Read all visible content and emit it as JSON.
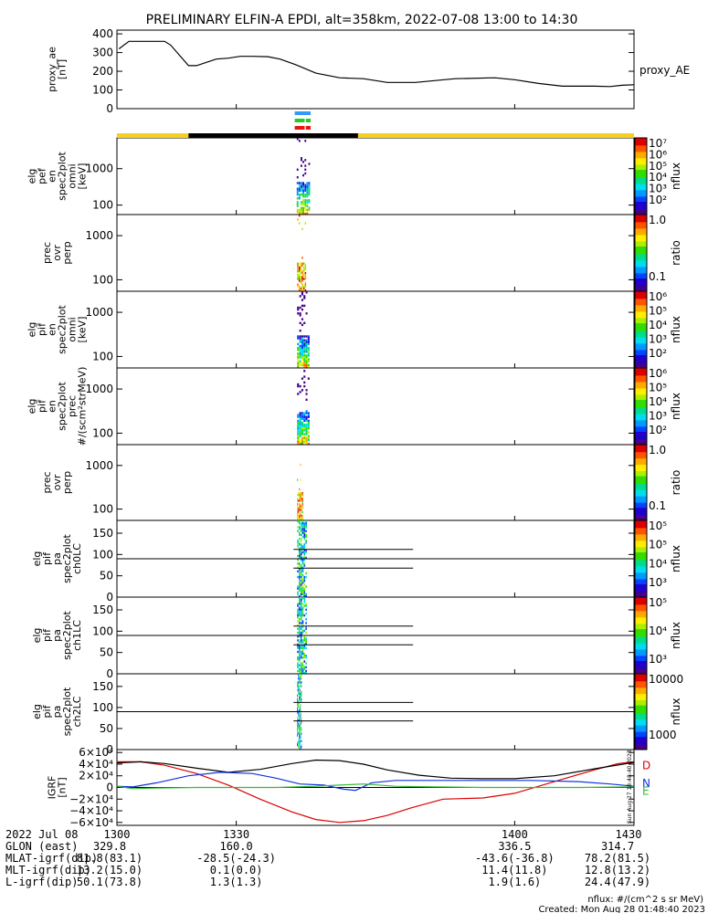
{
  "title": "PRELIMINARY ELFIN-A EPDI, alt=358km, 2022-07-08 13:00 to 14:30",
  "colors": {
    "sun_bar": "#f5d020",
    "shadow_bar": "#000000",
    "marker_blue": "#3399ff",
    "marker_green": "#22cc22",
    "marker_red": "#ee1111"
  },
  "chart_data": [
    {
      "id": "proxy_ae",
      "type": "line",
      "ylabel_lines": [
        "proxy_ae",
        "[nT]"
      ],
      "legend": "proxy_AE",
      "ylim": [
        0,
        420
      ],
      "yticks": [
        "400",
        "300",
        "200",
        "100",
        "0"
      ],
      "ytick_values": [
        400,
        300,
        200,
        100,
        0
      ],
      "x": [
        1300.5,
        1303,
        1308,
        1312,
        1313.5,
        1318,
        1320,
        1325,
        1328,
        1331,
        1334,
        1338,
        1341,
        1345,
        1350,
        1356,
        1362,
        1368,
        1375,
        1385,
        1395,
        1400,
        1406,
        1412,
        1420,
        1424,
        1427,
        1430
      ],
      "y": [
        320,
        360,
        360,
        360,
        340,
        230,
        230,
        265,
        270,
        280,
        280,
        278,
        265,
        235,
        190,
        165,
        160,
        140,
        140,
        160,
        165,
        155,
        135,
        120,
        120,
        118,
        125,
        128
      ]
    },
    {
      "id": "pef_omni",
      "type": "heatmap",
      "ylabel_lines": [
        "elg",
        "pef",
        "en",
        "spec2plot",
        "omni",
        "[keV]"
      ],
      "yscale": "log",
      "ylim": [
        55,
        7000
      ],
      "yticks": [
        "1000",
        "100"
      ],
      "ytick_values": [
        1000,
        100
      ],
      "colorbar_label": "nflux",
      "colorbar_ticks": [
        "10⁷",
        "10⁶",
        "10⁵",
        "10⁴",
        "10³",
        "10²"
      ],
      "x_range": [
        1345.2,
        1348.6
      ]
    },
    {
      "id": "prec_ovr_perp_1",
      "type": "heatmap",
      "ylabel_lines": [
        "prec",
        "ovr",
        "perp"
      ],
      "yscale": "log",
      "ylim": [
        55,
        3000
      ],
      "yticks": [
        "1000",
        "100"
      ],
      "ytick_values": [
        1000,
        100
      ],
      "colorbar_label": "ratio",
      "colorbar_ticks": [
        "1.0",
        "0.1"
      ],
      "x_range": [
        1345.3,
        1347.6
      ]
    },
    {
      "id": "pif_omni",
      "type": "heatmap",
      "ylabel_lines": [
        "elg",
        "pif",
        "en",
        "spec2plot",
        "omni",
        "[keV]"
      ],
      "yscale": "log",
      "ylim": [
        55,
        3000
      ],
      "yticks": [
        "1000",
        "100"
      ],
      "ytick_values": [
        1000,
        100
      ],
      "colorbar_label": "nflux",
      "colorbar_ticks": [
        "10⁶",
        "10⁵",
        "10⁴",
        "10³",
        "10²"
      ],
      "x_range": [
        1345.3,
        1348.5
      ]
    },
    {
      "id": "pif_prec",
      "type": "heatmap",
      "ylabel_lines": [
        "elg",
        "pif",
        "en",
        "spec2plot",
        "prec",
        "#/(scm²strMeV)"
      ],
      "yscale": "log",
      "ylim": [
        55,
        3000
      ],
      "yticks": [
        "1000",
        "100"
      ],
      "ytick_values": [
        1000,
        100
      ],
      "colorbar_label": "nflux",
      "colorbar_ticks": [
        "10⁶",
        "10⁵",
        "10⁴",
        "10³",
        "10²"
      ],
      "x_range": [
        1345.3,
        1348.5
      ]
    },
    {
      "id": "prec_ovr_perp_2",
      "type": "heatmap",
      "ylabel_lines": [
        "prec",
        "ovr",
        "perp"
      ],
      "yscale": "log",
      "ylim": [
        55,
        3000
      ],
      "yticks": [
        "1000",
        "100"
      ],
      "ytick_values": [
        1000,
        100
      ],
      "colorbar_label": "ratio",
      "colorbar_ticks": [
        "1.0",
        "0.1"
      ],
      "x_range": [
        1345.3,
        1346.8
      ]
    },
    {
      "id": "pa_ch0lc",
      "type": "heatmap",
      "ylabel_lines": [
        "elg",
        "pif",
        "pa",
        "spec2plot",
        "ch0LC"
      ],
      "ylim": [
        0,
        180
      ],
      "yticks": [
        "150",
        "100",
        "50",
        "0"
      ],
      "ytick_values": [
        150,
        100,
        50,
        0
      ],
      "colorbar_label": "nflux",
      "colorbar_ticks": [
        "10⁵",
        "10⁵",
        "10⁴",
        "10³"
      ],
      "x_range": [
        1345.3,
        1347.8
      ]
    },
    {
      "id": "pa_ch1lc",
      "type": "heatmap",
      "ylabel_lines": [
        "elg",
        "pif",
        "pa",
        "spec2plot",
        "ch1LC"
      ],
      "ylim": [
        0,
        180
      ],
      "yticks": [
        "150",
        "100",
        "50",
        "0"
      ],
      "ytick_values": [
        150,
        100,
        50,
        0
      ],
      "colorbar_label": "nflux",
      "colorbar_ticks": [
        "10⁵",
        "10⁴",
        "10³"
      ],
      "x_range": [
        1345.3,
        1347.8
      ]
    },
    {
      "id": "pa_ch2lc",
      "type": "heatmap",
      "ylabel_lines": [
        "elg",
        "pif",
        "pa",
        "spec2plot",
        "ch2LC"
      ],
      "ylim": [
        0,
        180
      ],
      "yticks": [
        "150",
        "100",
        "50",
        "0"
      ],
      "ytick_values": [
        150,
        100,
        50,
        0
      ],
      "colorbar_label": "nflux",
      "colorbar_ticks": [
        "10000",
        "1000"
      ],
      "x_range": [
        1345.3,
        1346.5
      ]
    },
    {
      "id": "igrf",
      "type": "line",
      "ylabel_lines": [
        "IGRF",
        "[nT]"
      ],
      "ylim": [
        -65000,
        65000
      ],
      "yticks": [
        "6×10⁴",
        "4×10⁴",
        "2×10⁴",
        "0",
        "−2×10⁴",
        "−4×10⁴",
        "−6×10⁴"
      ],
      "ytick_values": [
        60000,
        40000,
        20000,
        0,
        -20000,
        -40000,
        -60000
      ],
      "legend_labels": [
        "D",
        "N",
        "E"
      ],
      "side_note": "Sun Aug 27 18:48:40 2023",
      "series": [
        {
          "name": "D",
          "color": "#dd0000",
          "x": [
            1300,
            1306,
            1312,
            1320,
            1328,
            1336,
            1344,
            1350,
            1356,
            1362,
            1368,
            1374,
            1382,
            1392,
            1400,
            1410,
            1420,
            1426,
            1430
          ],
          "y": [
            44000,
            44000,
            38000,
            24000,
            4000,
            -20000,
            -42000,
            -55000,
            -60000,
            -57000,
            -48000,
            -35000,
            -20000,
            -18000,
            -10000,
            10000,
            30000,
            41000,
            44000
          ]
        },
        {
          "name": "black",
          "color": "#000000",
          "x": [
            1300,
            1306,
            1312,
            1320,
            1328,
            1336,
            1344,
            1350,
            1356,
            1362,
            1368,
            1376,
            1384,
            1392,
            1400,
            1410,
            1420,
            1430
          ],
          "y": [
            42000,
            44000,
            41000,
            33000,
            26000,
            31000,
            41000,
            47000,
            46000,
            40000,
            30000,
            21000,
            16000,
            15000,
            15000,
            20000,
            32000,
            43000
          ]
        },
        {
          "name": "N",
          "color": "#1133dd",
          "x": [
            1300,
            1304,
            1310,
            1318,
            1326,
            1334,
            1340,
            1346,
            1352,
            1357,
            1360,
            1364,
            1370,
            1380,
            1392,
            1404,
            1416,
            1424,
            1430
          ],
          "y": [
            2000,
            1000,
            8000,
            20000,
            26000,
            24000,
            16000,
            6000,
            4000,
            -3000,
            -5000,
            8000,
            12000,
            12000,
            12000,
            12000,
            10000,
            6000,
            2000
          ]
        },
        {
          "name": "E",
          "color": "#33bb33",
          "x": [
            1300,
            1304,
            1310,
            1320,
            1330,
            1340,
            1350,
            1356,
            1362,
            1370,
            1380,
            1392,
            1404,
            1416,
            1430
          ],
          "y": [
            2000,
            -2000,
            -1000,
            0,
            0,
            0,
            2000,
            4000,
            6000,
            2000,
            1000,
            0,
            0,
            0,
            1000
          ]
        }
      ]
    }
  ],
  "xaxis": {
    "range": [
      1300,
      1430
    ],
    "ticks": [
      {
        "value": 1300,
        "label": "1300",
        "glon": "329.8",
        "mlat": "81.8(83.1)",
        "mlt": "13.2(15.0)",
        "lval": "50.1(73.8)"
      },
      {
        "value": 1330,
        "label": "1330",
        "glon": "160.0",
        "mlat": "-28.5(-24.3)",
        "mlt": "0.1(0.0)",
        "lval": "1.3(1.3)"
      },
      {
        "value": 1400,
        "label": "1400",
        "glon": "336.5",
        "mlat": "-43.6(-36.8)",
        "mlt": "11.4(11.8)",
        "lval": "1.9(1.6)"
      },
      {
        "value": 1430,
        "label": "1430",
        "glon": "314.7",
        "mlat": "78.2(81.5)",
        "mlt": "12.8(13.2)",
        "lval": "24.4(47.9)"
      }
    ],
    "row_labels": {
      "date": "2022 Jul 08",
      "glon": "GLON (east)",
      "mlat": "MLAT-igrf(dip)",
      "mlt": "MLT-igrf(dip)",
      "lval": "L-igrf(dip)"
    }
  },
  "footer": {
    "units": "nflux: #/(cm^2 s sr MeV)",
    "created": "Created: Mon Aug 28 01:48:40 2023"
  }
}
